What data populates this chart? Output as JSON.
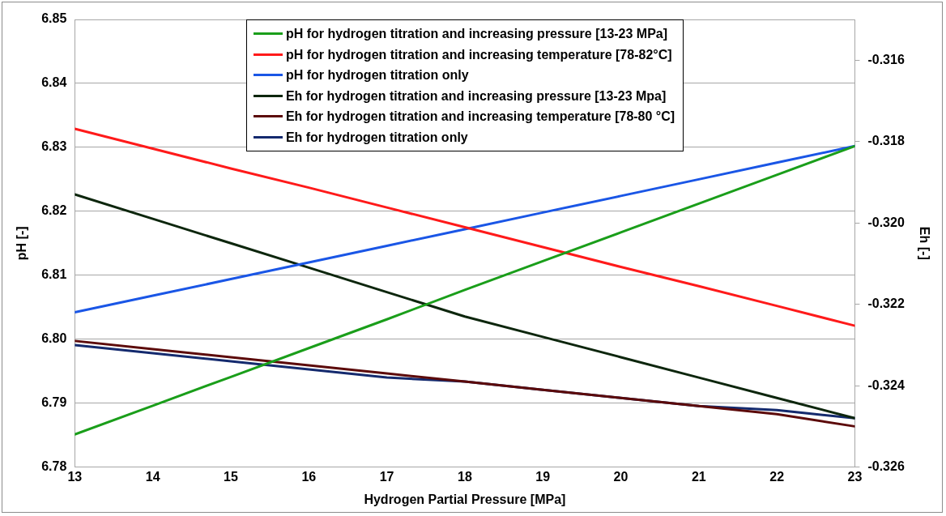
{
  "chart_data": {
    "type": "line",
    "xlabel": "Hydrogen Partial Pressure [MPa]",
    "ylabel": "pH [-]",
    "y2label": "Eh [-]",
    "x": [
      13,
      14,
      15,
      16,
      17,
      18,
      19,
      20,
      21,
      22,
      23
    ],
    "xlim": [
      13,
      23
    ],
    "xticks": [
      13,
      14,
      15,
      16,
      17,
      18,
      19,
      20,
      21,
      22,
      23
    ],
    "ylim": [
      6.78,
      6.85
    ],
    "yticks": [
      6.78,
      6.79,
      {
        "value": 6.8,
        "label": "6.80"
      },
      6.81,
      6.82,
      6.83,
      6.84,
      6.85
    ],
    "y2lim": [
      -0.326,
      -0.315
    ],
    "y2ticks": [
      -0.326,
      -0.324,
      -0.322,
      {
        "value": -0.32,
        "label": "-0.320"
      },
      -0.318,
      -0.316
    ],
    "grid": "y",
    "legend": "top",
    "marker": "none",
    "line_style": "solid",
    "series": [
      {
        "name": "pH for hydrogen titration and increasing pressure [13-23 MPa]",
        "color": "#1a9e1a",
        "values": [
          6.7851,
          6.7896,
          6.7941,
          6.7986,
          6.8031,
          6.8077,
          6.8122,
          6.8167,
          6.8212,
          6.8257,
          6.8302
        ]
      },
      {
        "name": "pH for hydrogen titration and increasing temperature [78-82°C]",
        "color": "#ff1a1a",
        "values": [
          6.8329,
          6.8298,
          6.8267,
          6.8237,
          6.8206,
          6.8175,
          6.8144,
          6.8113,
          6.8083,
          6.8052,
          6.8021
        ]
      },
      {
        "name": "pH for hydrogen titration only",
        "color": "#1a56e6",
        "values": [
          6.8042,
          6.8068,
          6.8094,
          6.812,
          6.8146,
          6.8172,
          6.8198,
          6.8224,
          6.825,
          6.8276,
          6.8302
        ]
      },
      {
        "name": "Eh for hydrogen titration and increasing pressure [13-23 Mpa]",
        "color": "#0d260d",
        "axis": "y2",
        "values": [
          -0.3193,
          -0.3199,
          -0.3205,
          -0.3211,
          -0.3217,
          -0.3223,
          -0.3228,
          -0.3233,
          -0.3238,
          -0.3243,
          -0.3248
        ]
      },
      {
        "name": "Eh for hydrogen titration and increasing temperature [78-80 °C]",
        "color": "#5c0a0a",
        "axis": "y2",
        "values": [
          -0.3229,
          -0.3231,
          -0.3233,
          -0.3235,
          -0.3237,
          -0.3239,
          -0.3241,
          -0.3243,
          -0.3245,
          -0.3247,
          -0.325
        ]
      },
      {
        "name": "Eh for hydrogen titration only",
        "color": "#142a6e",
        "axis": "y2",
        "values": [
          -0.323,
          -0.3232,
          -0.3234,
          -0.3236,
          -0.3238,
          -0.3239,
          -0.3241,
          -0.3243,
          -0.3245,
          -0.3246,
          -0.3248
        ]
      }
    ]
  }
}
